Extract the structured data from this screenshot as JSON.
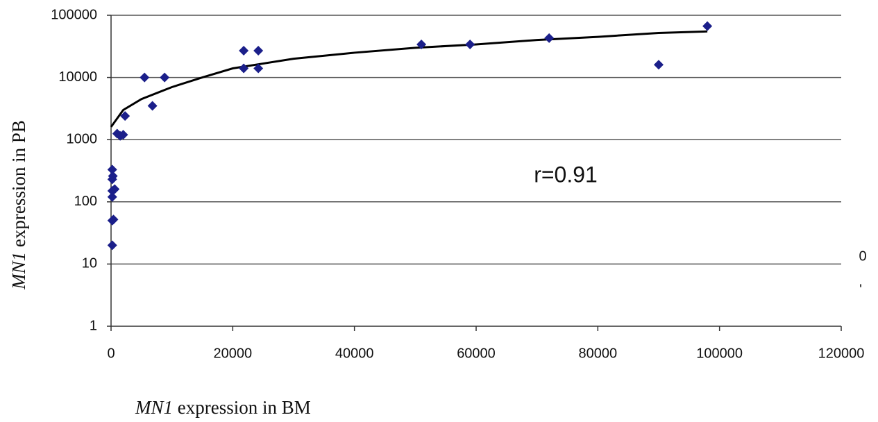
{
  "chart_data": {
    "type": "scatter",
    "x_label": {
      "italic": "MN1",
      "text": "expression in BM"
    },
    "y_label": {
      "italic": "MN1",
      "text": "expression in PB"
    },
    "annotation": "r=0.91",
    "extra_texts": [
      "0",
      "'"
    ],
    "log_y": true,
    "grid": true,
    "color": "#1b1f8a",
    "xlim": [
      0,
      120000
    ],
    "xticks": [
      0,
      20000,
      40000,
      60000,
      80000,
      100000,
      120000
    ],
    "ylim": [
      1,
      100000
    ],
    "yticks": [
      1,
      10,
      100,
      1000,
      10000,
      100000
    ],
    "x": [
      200,
      200,
      400,
      200,
      200,
      600,
      200,
      300,
      200,
      1000,
      1500,
      2000,
      2300,
      5500,
      6800,
      8800,
      21800,
      21800,
      24200,
      24200,
      51000,
      59000,
      72000,
      90000,
      98000
    ],
    "values": [
      20,
      50,
      52,
      120,
      150,
      160,
      230,
      260,
      330,
      1250,
      1150,
      1200,
      2400,
      10000,
      3500,
      10000,
      27000,
      14000,
      27000,
      14000,
      34000,
      34000,
      43000,
      16000,
      67000
    ],
    "trend": {
      "color": "#000000",
      "x": [
        0,
        2000,
        5000,
        10000,
        15000,
        20000,
        30000,
        40000,
        50000,
        60000,
        70000,
        80000,
        90000,
        98000
      ],
      "values": [
        1600,
        3000,
        4500,
        7000,
        10000,
        14000,
        20000,
        25000,
        30000,
        34000,
        40000,
        45000,
        52000,
        55000
      ]
    }
  }
}
